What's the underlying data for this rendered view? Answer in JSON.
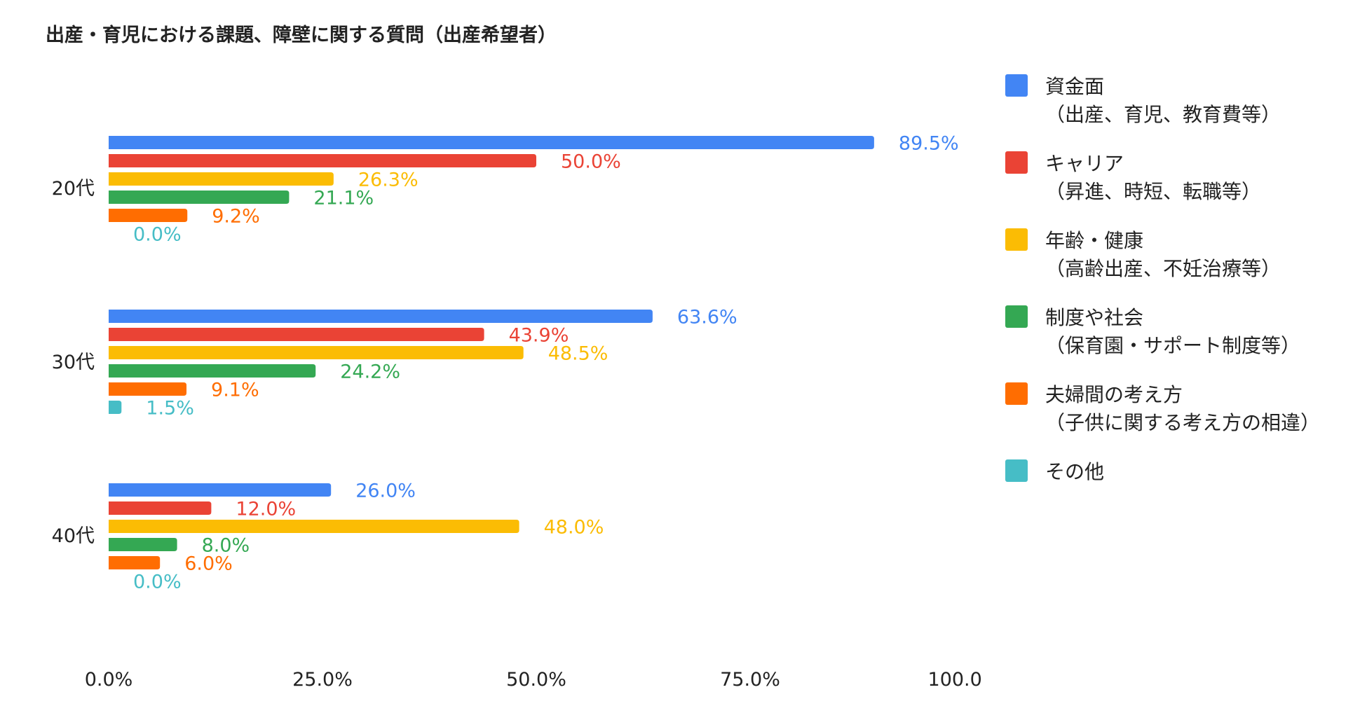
{
  "chart_data": {
    "type": "bar",
    "orientation": "horizontal",
    "title": "出産・育児における課題、障壁に関する質問（出産希望者）",
    "categories": [
      "20代",
      "30代",
      "40代"
    ],
    "series": [
      {
        "name": "資金面",
        "name_sub": "（出産、育児、教育費等）",
        "color": "#4285F4",
        "values": [
          89.5,
          63.6,
          26.0
        ]
      },
      {
        "name": "キャリア",
        "name_sub": "（昇進、時短、転職等）",
        "color": "#EA4335",
        "values": [
          50.0,
          43.9,
          12.0
        ]
      },
      {
        "name": "年齢・健康",
        "name_sub": "（高齢出産、不妊治療等）",
        "color": "#FBBC04",
        "values": [
          26.3,
          48.5,
          48.0
        ]
      },
      {
        "name": "制度や社会",
        "name_sub": "（保育園・サポート制度等）",
        "color": "#34A853",
        "values": [
          21.1,
          24.2,
          8.0
        ]
      },
      {
        "name": "夫婦間の考え方",
        "name_sub": "（子供に関する考え方の相違）",
        "color": "#FF6D01",
        "values": [
          9.2,
          9.1,
          6.0
        ]
      },
      {
        "name": "その他",
        "name_sub": "",
        "color": "#46BDC6",
        "values": [
          0.0,
          1.5,
          0.0
        ]
      }
    ],
    "xlim": [
      0,
      100
    ],
    "xticks": [
      "0.0%",
      "25.0%",
      "50.0%",
      "75.0%",
      "100.0%"
    ],
    "value_format": "%",
    "grid": false,
    "legend_position": "right"
  }
}
